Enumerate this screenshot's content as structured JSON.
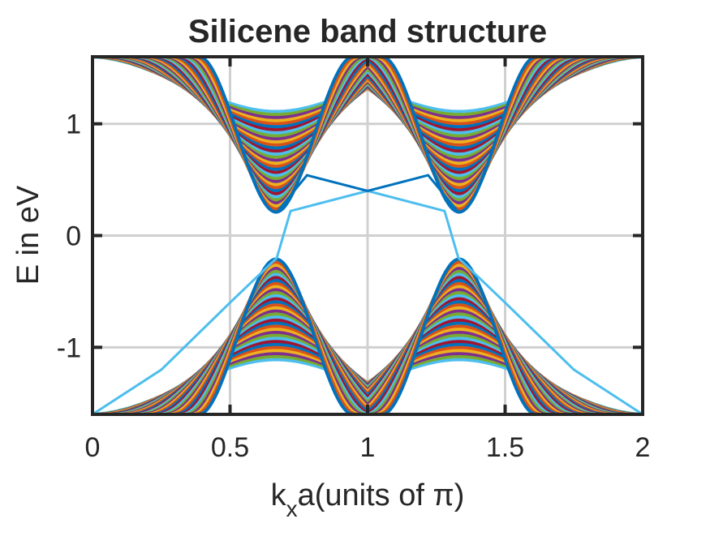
{
  "chart_data": {
    "type": "line",
    "title": "Silicene band structure",
    "xlabel_main": "k",
    "xlabel_sub": "x",
    "xlabel_rest": "a(units of π)",
    "ylabel": "E in eV",
    "xlim": [
      0,
      2
    ],
    "ylim": [
      -1.6,
      1.6
    ],
    "grid": true,
    "x_ticks": [
      0,
      0.5,
      1,
      1.5,
      2
    ],
    "x_tick_labels": [
      "0",
      "0.5",
      "1",
      "1.5",
      "2"
    ],
    "y_ticks": [
      -1,
      0,
      1
    ],
    "y_tick_labels": [
      "-1",
      "0",
      "1"
    ],
    "bulk_band_count": 34,
    "bulk_band_min_energy": 0.21,
    "bulk_band_max_at_edges": 1.6,
    "bulk_band_minimum_k": [
      0.667,
      1.333
    ],
    "edge_state_points": {
      "upper": [
        [
          0.67,
          0.21
        ],
        [
          0.78,
          0.54
        ],
        [
          1.0,
          0.4
        ],
        [
          1.22,
          0.54
        ],
        [
          1.33,
          0.21
        ]
      ],
      "lower": [
        [
          0.0,
          -1.6
        ],
        [
          0.25,
          -1.2
        ],
        [
          0.5,
          -0.6
        ],
        [
          0.67,
          -0.2
        ],
        [
          0.72,
          0.22
        ],
        [
          1.0,
          0.4
        ],
        [
          1.28,
          0.22
        ],
        [
          1.33,
          -0.2
        ],
        [
          1.5,
          -0.6
        ],
        [
          1.75,
          -1.2
        ],
        [
          2.0,
          -1.6
        ]
      ]
    },
    "colors": [
      "#0072BD",
      "#D95319",
      "#EDB120",
      "#7E2F8E",
      "#77AC30",
      "#4DBEEE",
      "#A2142F"
    ],
    "edge_upper_color": "#0072BD",
    "edge_lower_color": "#4DBEEE"
  }
}
